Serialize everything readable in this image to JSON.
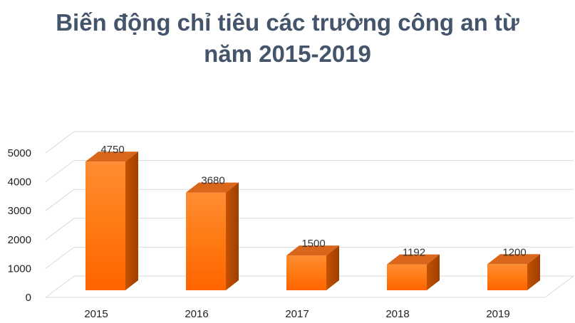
{
  "chart_data": {
    "type": "bar",
    "title_line1": "Biến động chỉ tiêu các trường công an từ",
    "title_line2": "năm 2015-2019",
    "categories": [
      "2015",
      "2016",
      "2017",
      "2018",
      "2019"
    ],
    "values": [
      4750,
      3680,
      1500,
      1192,
      1200
    ],
    "data_labels": [
      "4750",
      "3680",
      "1500",
      "1192",
      "1200"
    ],
    "yticks": [
      0,
      1000,
      2000,
      3000,
      4000,
      5000
    ],
    "ylim": [
      0,
      5000
    ],
    "grid": true,
    "style": "3d-column",
    "colors": {
      "bar_front_top": "#ff8a2a",
      "bar_front_bottom": "#ff6a00",
      "bar_side": "#b84a00",
      "bar_top": "#d9661a",
      "grid": "#d9d9d9"
    }
  }
}
